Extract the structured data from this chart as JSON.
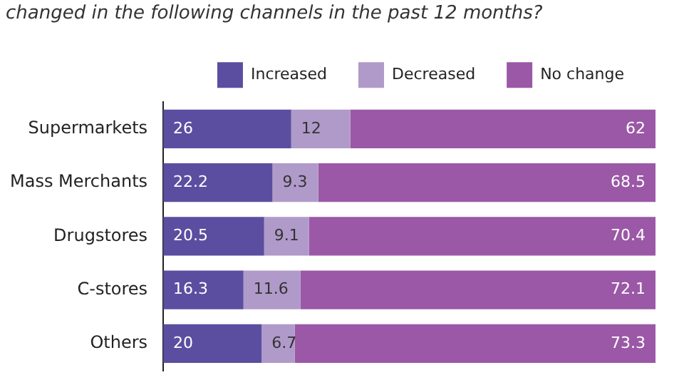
{
  "chart_data": {
    "type": "bar",
    "orientation": "horizontal",
    "stacked": true,
    "title": "changed in the following channels in the past 12 months?",
    "categories": [
      "Supermarkets",
      "Mass Merchants",
      "Drugstores",
      "C-stores",
      "Others"
    ],
    "series": [
      {
        "name": "Increased",
        "color": "#5b4ea0",
        "values": [
          26,
          22.2,
          20.5,
          16.3,
          20
        ]
      },
      {
        "name": "Decreased",
        "color": "#b09ac9",
        "values": [
          12,
          9.3,
          9.1,
          11.6,
          6.7
        ]
      },
      {
        "name": "No change",
        "color": "#9b58a6",
        "values": [
          62,
          68.5,
          70.4,
          72.1,
          73.3
        ]
      }
    ],
    "xlim": [
      0,
      100
    ],
    "tick_labels": "y",
    "grid": false,
    "legend": "top right",
    "data_labels": true
  }
}
